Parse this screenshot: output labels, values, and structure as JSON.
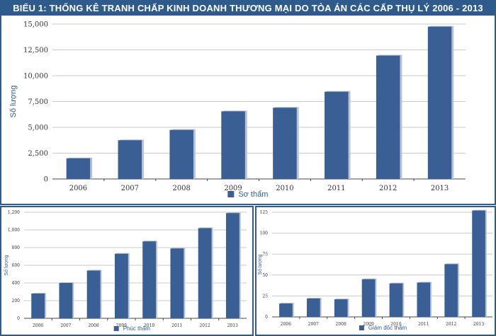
{
  "header": {
    "title": "BIỂU 1: THỐNG KÊ TRANH CHẤP KINH DOANH THƯƠNG MẠI DO TÒA ÁN CÁC CẤP THỤ LÝ 2006 - 2013"
  },
  "colors": {
    "bar": "#3a5f94",
    "bar_shadow": "#b9c3d3",
    "frame": "#2f5b8c"
  },
  "chart_data": [
    {
      "type": "bar",
      "categories": [
        "2006",
        "2007",
        "2008",
        "2009",
        "2010",
        "2011",
        "2012",
        "2013"
      ],
      "series": [
        {
          "name": "Sơ thẩm",
          "values": [
            2000,
            3750,
            4750,
            6550,
            6900,
            8450,
            11950,
            14750
          ]
        }
      ],
      "ylabel": "Số lượng",
      "ylim": [
        0,
        15000
      ],
      "yticks": [
        0,
        2500,
        5000,
        7500,
        10000,
        12500,
        15000
      ],
      "ytick_labels": [
        "0",
        "2,500",
        "5,000",
        "7,500",
        "10,000",
        "12,500",
        "15,000"
      ],
      "grid": true,
      "legend": "bottom"
    },
    {
      "type": "bar",
      "categories": [
        "2006",
        "2007",
        "2008",
        "2009",
        "2010",
        "2011",
        "2012",
        "2013"
      ],
      "series": [
        {
          "name": "Phúc thẩm",
          "values": [
            280,
            400,
            540,
            730,
            870,
            790,
            1020,
            1190
          ]
        }
      ],
      "ylabel": "Số lượng",
      "ylim": [
        0,
        1200
      ],
      "yticks": [
        0,
        200,
        400,
        600,
        800,
        1000,
        1200
      ],
      "ytick_labels": [
        "0",
        "200",
        "400",
        "600",
        "800",
        "1,000",
        "1,200"
      ],
      "grid": true,
      "legend": "bottom"
    },
    {
      "type": "bar",
      "categories": [
        "2006",
        "2007",
        "2008",
        "2009",
        "2010",
        "2011",
        "2012",
        "2013"
      ],
      "series": [
        {
          "name": "Giám đốc thẩm",
          "values": [
            16,
            22,
            21,
            45,
            40,
            41,
            63,
            127
          ]
        }
      ],
      "ylabel": "Số lượng",
      "ylim": [
        0,
        125
      ],
      "yticks": [
        0,
        25,
        50,
        75,
        100,
        125
      ],
      "ytick_labels": [
        "0",
        "25",
        "50",
        "75",
        "100",
        "125"
      ],
      "grid": true,
      "legend": "bottom"
    }
  ]
}
